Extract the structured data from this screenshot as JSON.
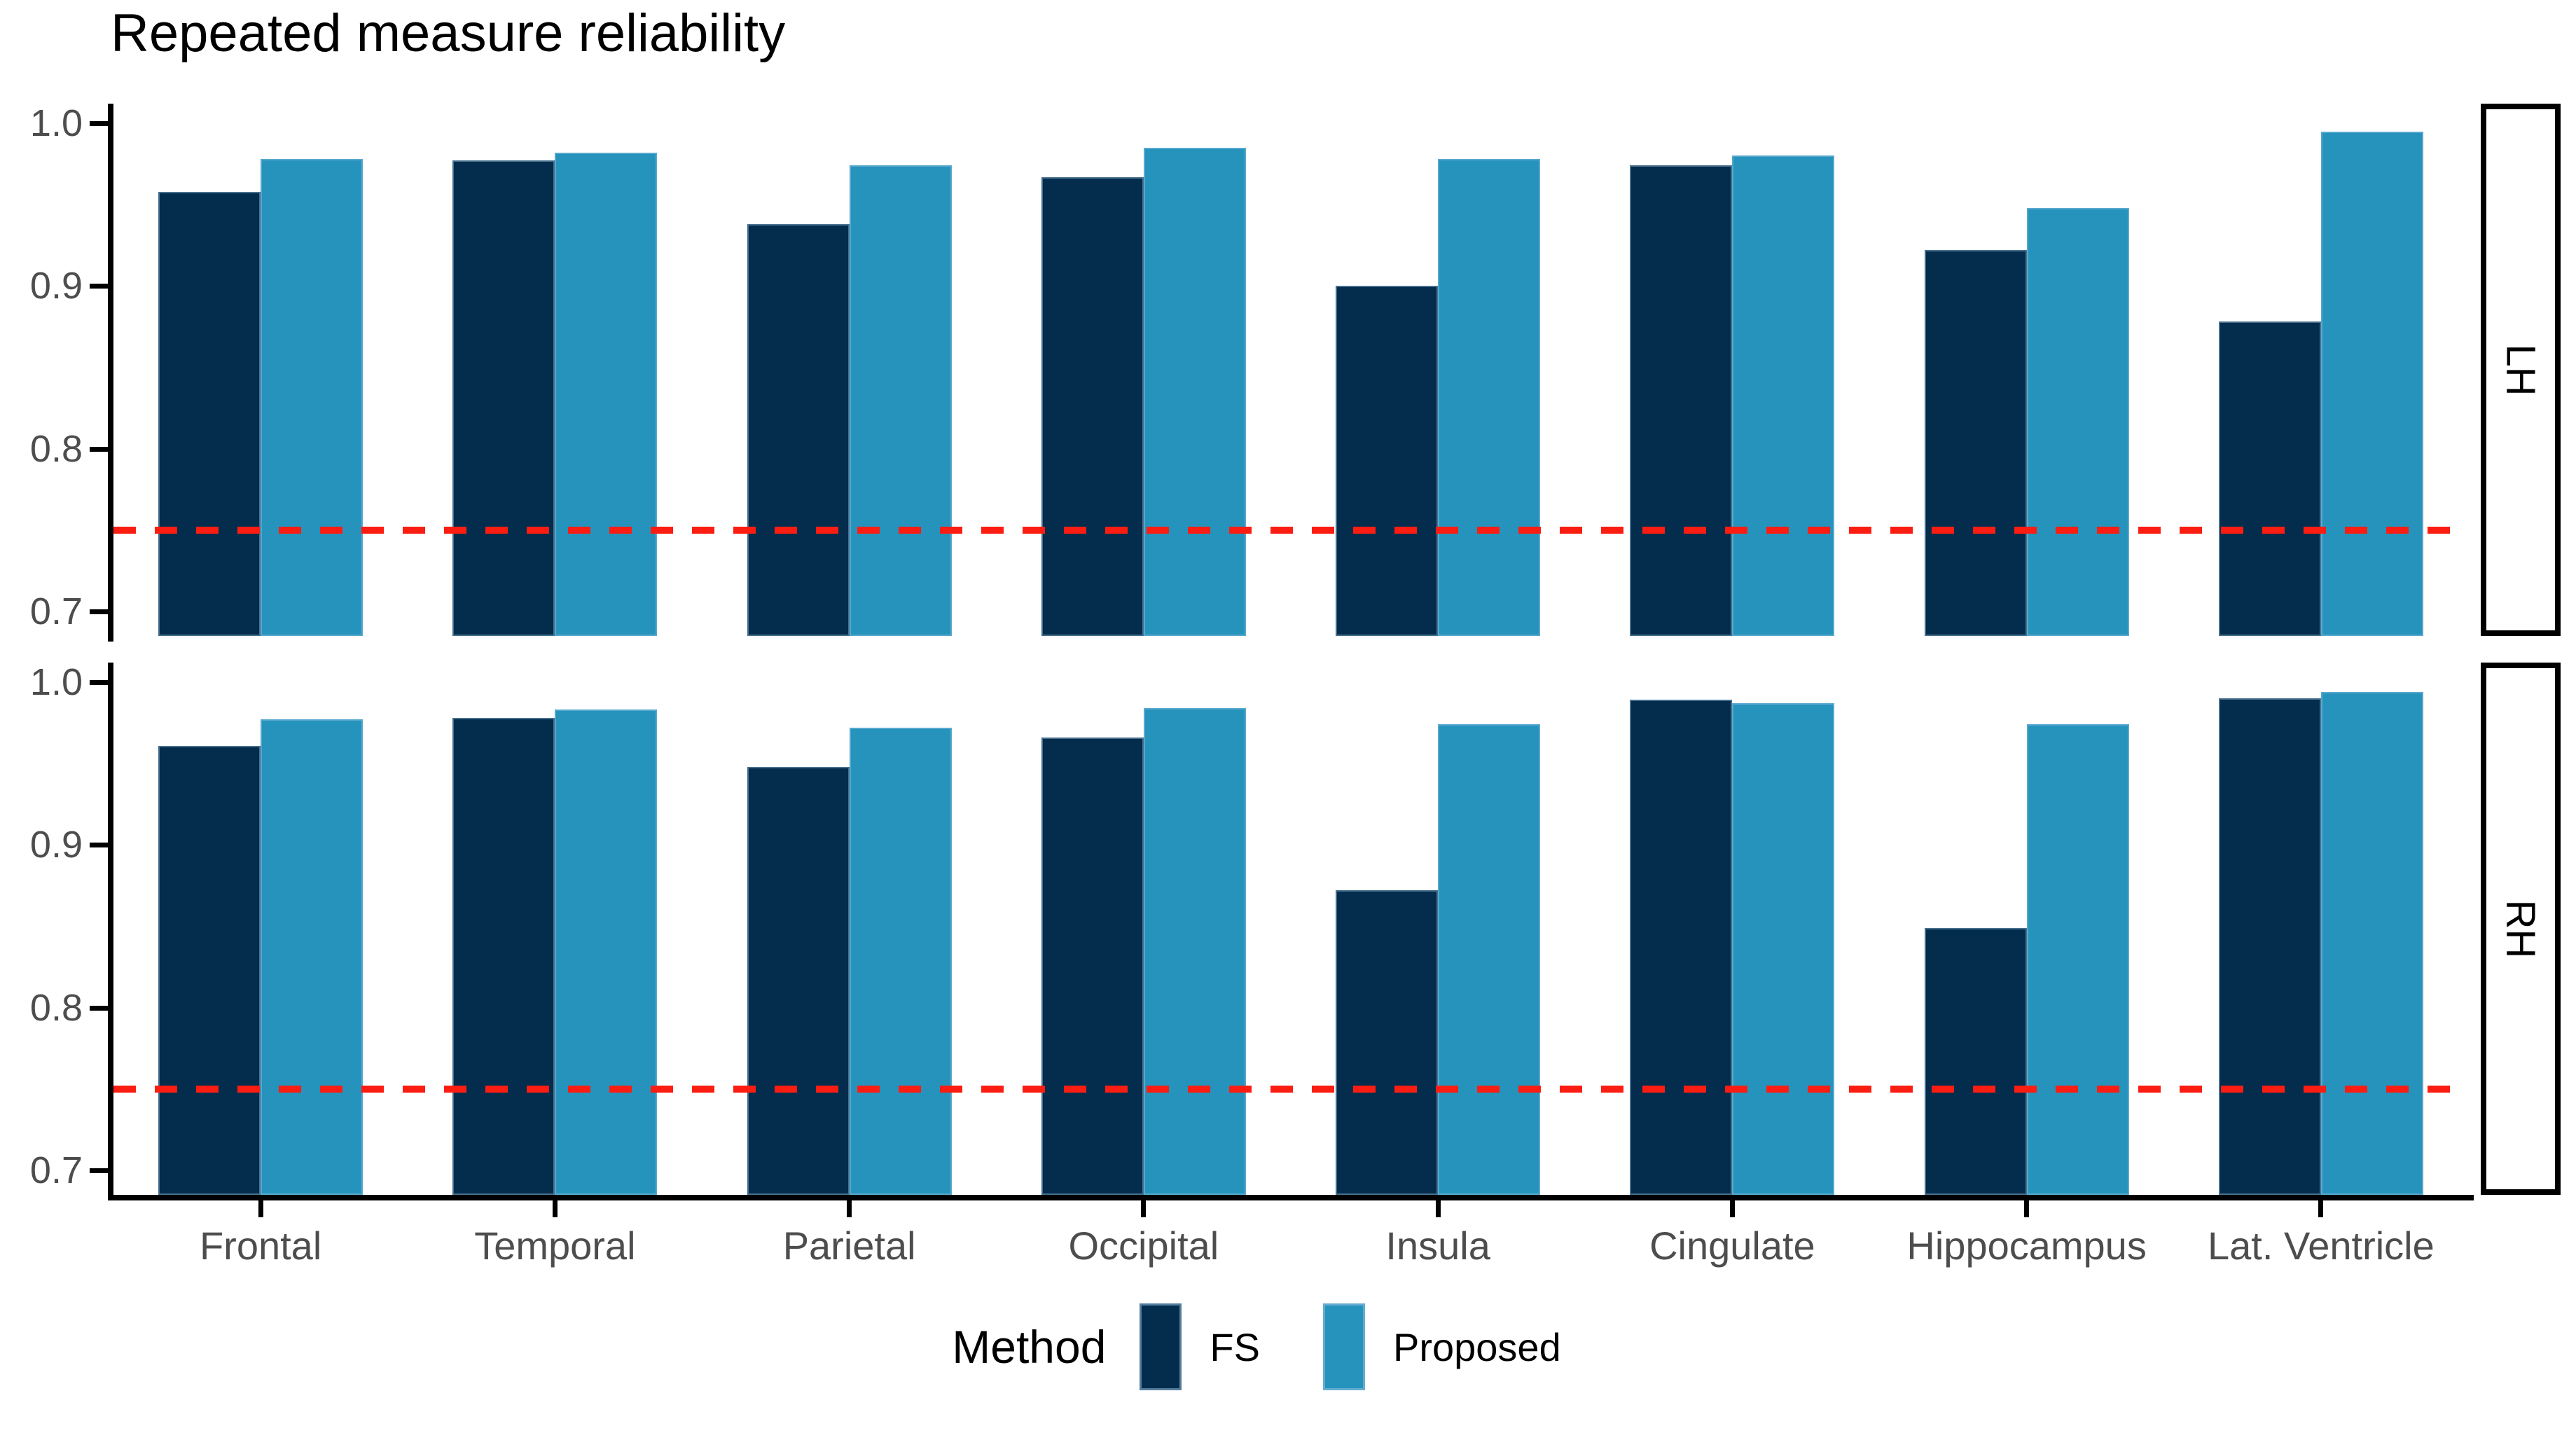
{
  "title": "Repeated measure reliability",
  "chart_data": {
    "type": "bar",
    "title": "Repeated measure reliability",
    "categories": [
      "Frontal",
      "Temporal",
      "Parietal",
      "Occipital",
      "Insula",
      "Cingulate",
      "Hippocampus",
      "Lat. Ventricle"
    ],
    "facets": [
      {
        "label": "LH",
        "series": [
          {
            "name": "FS",
            "values": [
              0.958,
              0.977,
              0.938,
              0.967,
              0.9,
              0.974,
              0.922,
              0.878
            ]
          },
          {
            "name": "Proposed",
            "values": [
              0.978,
              0.982,
              0.974,
              0.985,
              0.978,
              0.98,
              0.948,
              0.995
            ]
          }
        ]
      },
      {
        "label": "RH",
        "series": [
          {
            "name": "FS",
            "values": [
              0.961,
              0.978,
              0.948,
              0.966,
              0.872,
              0.989,
              0.849,
              0.99
            ]
          },
          {
            "name": "Proposed",
            "values": [
              0.977,
              0.983,
              0.972,
              0.984,
              0.974,
              0.987,
              0.974,
              0.994
            ]
          }
        ]
      }
    ],
    "y_ticks": [
      {
        "label": "1.0",
        "value": 1.0
      },
      {
        "label": "0.9",
        "value": 0.9
      },
      {
        "label": "0.8",
        "value": 0.8
      },
      {
        "label": "0.7",
        "value": 0.7
      }
    ],
    "ylim": [
      0.685,
      1.012
    ],
    "reference_line": {
      "value": 0.75,
      "style": "dashed",
      "color": "#FC1D12"
    },
    "grid": false,
    "legend_position": "bottom",
    "legend": {
      "title": "Method",
      "items": [
        {
          "label": "FS",
          "color": "#042C4C"
        },
        {
          "label": "Proposed",
          "color": "#2693BD"
        }
      ]
    },
    "colors": {
      "fs": "#042C4C",
      "proposed": "#2693BD",
      "reference": "#FC1D12",
      "axis_text": "#4D4D4D",
      "axis_line": "#000000"
    }
  }
}
